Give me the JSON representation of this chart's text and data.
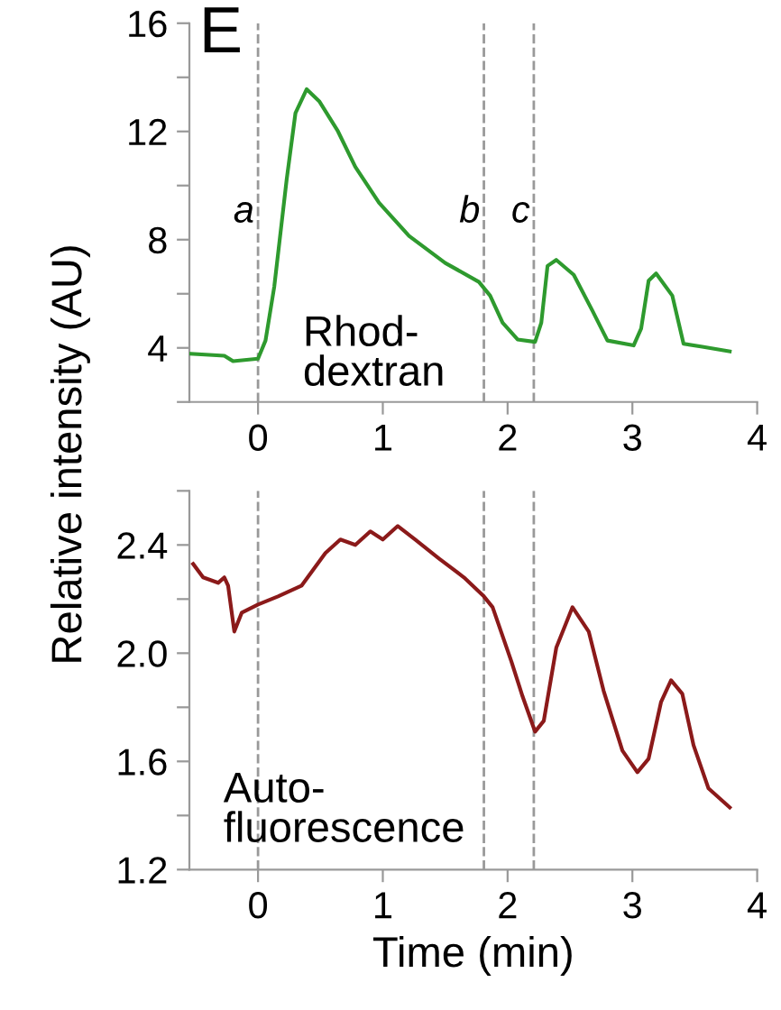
{
  "chart_data": [
    {
      "type": "line",
      "ylabel": "Relative intensity (AU)",
      "annotations": [
        "E",
        "Rhod-\ndextran"
      ],
      "xlim": [
        -0.55,
        4.0
      ],
      "xticks": [
        0,
        1,
        2,
        3,
        4
      ],
      "ylim": [
        2,
        16
      ],
      "yticks": [
        {
          "value": 2,
          "label": null
        },
        4,
        {
          "value": 6,
          "label": null
        },
        8,
        {
          "value": 10,
          "label": null
        },
        12,
        {
          "value": 14,
          "label": null
        },
        16
      ],
      "grid": false,
      "legend": false,
      "marker": "none",
      "line_style": "solid",
      "ref_lines": [
        {
          "axis": "x",
          "value": 0,
          "label": "a",
          "color": "#999999",
          "line_style": "dashed"
        },
        {
          "axis": "x",
          "value": 1.81,
          "label": "b",
          "color": "#999999",
          "line_style": "dashed"
        },
        {
          "axis": "x",
          "value": 2.21,
          "label": "c",
          "color": "#999999",
          "line_style": "dashed"
        }
      ],
      "series": [
        {
          "color": "#2e9a2e",
          "x": [
            -0.54,
            -0.27,
            -0.2,
            0,
            0.06,
            0.13,
            0.23,
            0.3,
            0.39,
            0.49,
            0.64,
            0.78,
            0.97,
            1.21,
            1.5,
            1.77,
            1.86,
            1.96,
            2.08,
            2.22,
            2.27,
            2.32,
            2.39,
            2.53,
            2.68,
            2.8,
            3.01,
            3.07,
            3.13,
            3.19,
            3.32,
            3.41,
            3.56,
            3.78
          ],
          "values": [
            3.78,
            3.71,
            3.51,
            3.6,
            4.27,
            6.26,
            10.24,
            12.68,
            13.56,
            13.12,
            12.01,
            10.69,
            9.36,
            8.14,
            7.14,
            6.44,
            5.93,
            4.93,
            4.31,
            4.22,
            4.93,
            7.03,
            7.25,
            6.7,
            5.37,
            4.27,
            4.09,
            4.71,
            6.48,
            6.75,
            5.93,
            4.15,
            4.04,
            3.87
          ]
        }
      ]
    },
    {
      "type": "line",
      "xlabel": "Time (min)",
      "annotations": [
        "Auto-\nfluorescence"
      ],
      "xlim": [
        -0.55,
        4.0
      ],
      "xticks": [
        0,
        1,
        2,
        3,
        4
      ],
      "ylim": [
        1.2,
        2.6
      ],
      "yticks": [
        1.2,
        {
          "value": 1.4,
          "label": null
        },
        1.6,
        {
          "value": 1.8,
          "label": null
        },
        {
          "value": 2.0,
          "label": "2.0"
        },
        {
          "value": 2.2,
          "label": null
        },
        2.4,
        {
          "value": 2.6,
          "label": null
        }
      ],
      "grid": false,
      "legend": false,
      "marker": "none",
      "line_style": "solid",
      "ref_lines": [
        {
          "axis": "x",
          "value": 0,
          "color": "#999999",
          "line_style": "dashed"
        },
        {
          "axis": "x",
          "value": 1.81,
          "color": "#999999",
          "line_style": "dashed"
        },
        {
          "axis": "x",
          "value": 2.21,
          "color": "#999999",
          "line_style": "dashed"
        }
      ],
      "series": [
        {
          "color": "#8b1a1a",
          "x": [
            -0.52,
            -0.44,
            -0.32,
            -0.27,
            -0.24,
            -0.19,
            -0.13,
            0,
            0.16,
            0.35,
            0.54,
            0.66,
            0.78,
            0.9,
            1.0,
            1.12,
            1.26,
            1.45,
            1.65,
            1.81,
            1.88,
            2.03,
            2.12,
            2.22,
            2.29,
            2.39,
            2.52,
            2.65,
            2.77,
            2.92,
            3.04,
            3.13,
            3.23,
            3.31,
            3.4,
            3.49,
            3.61,
            3.78
          ],
          "values": [
            2.33,
            2.28,
            2.26,
            2.28,
            2.25,
            2.08,
            2.15,
            2.18,
            2.21,
            2.25,
            2.37,
            2.42,
            2.4,
            2.45,
            2.42,
            2.47,
            2.42,
            2.35,
            2.28,
            2.21,
            2.17,
            1.97,
            1.84,
            1.71,
            1.75,
            2.02,
            2.17,
            2.08,
            1.86,
            1.64,
            1.56,
            1.61,
            1.82,
            1.9,
            1.85,
            1.66,
            1.5,
            1.43
          ]
        }
      ]
    }
  ]
}
